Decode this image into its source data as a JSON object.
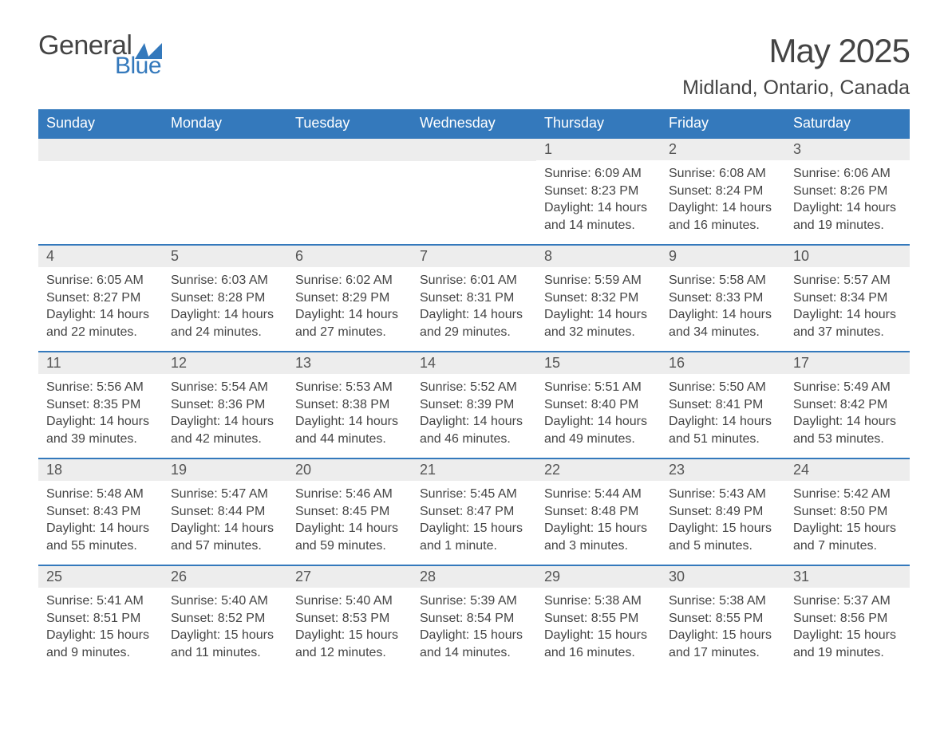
{
  "logo": {
    "text1": "General",
    "text2": "Blue",
    "shape_color": "#3479bc"
  },
  "title": "May 2025",
  "location": "Midland, Ontario, Canada",
  "colors": {
    "header_bg": "#3479bc",
    "header_text": "#ffffff",
    "daynum_bg": "#ededed",
    "text": "#444444",
    "border": "#3479bc",
    "background": "#ffffff"
  },
  "fonts": {
    "title_size": 42,
    "location_size": 25,
    "weekday_size": 18,
    "daynum_size": 18,
    "detail_size": 16
  },
  "weekdays": [
    "Sunday",
    "Monday",
    "Tuesday",
    "Wednesday",
    "Thursday",
    "Friday",
    "Saturday"
  ],
  "weeks": [
    [
      {
        "day": null
      },
      {
        "day": null
      },
      {
        "day": null
      },
      {
        "day": null
      },
      {
        "day": "1",
        "sunrise": "Sunrise: 6:09 AM",
        "sunset": "Sunset: 8:23 PM",
        "daylight1": "Daylight: 14 hours",
        "daylight2": "and 14 minutes."
      },
      {
        "day": "2",
        "sunrise": "Sunrise: 6:08 AM",
        "sunset": "Sunset: 8:24 PM",
        "daylight1": "Daylight: 14 hours",
        "daylight2": "and 16 minutes."
      },
      {
        "day": "3",
        "sunrise": "Sunrise: 6:06 AM",
        "sunset": "Sunset: 8:26 PM",
        "daylight1": "Daylight: 14 hours",
        "daylight2": "and 19 minutes."
      }
    ],
    [
      {
        "day": "4",
        "sunrise": "Sunrise: 6:05 AM",
        "sunset": "Sunset: 8:27 PM",
        "daylight1": "Daylight: 14 hours",
        "daylight2": "and 22 minutes."
      },
      {
        "day": "5",
        "sunrise": "Sunrise: 6:03 AM",
        "sunset": "Sunset: 8:28 PM",
        "daylight1": "Daylight: 14 hours",
        "daylight2": "and 24 minutes."
      },
      {
        "day": "6",
        "sunrise": "Sunrise: 6:02 AM",
        "sunset": "Sunset: 8:29 PM",
        "daylight1": "Daylight: 14 hours",
        "daylight2": "and 27 minutes."
      },
      {
        "day": "7",
        "sunrise": "Sunrise: 6:01 AM",
        "sunset": "Sunset: 8:31 PM",
        "daylight1": "Daylight: 14 hours",
        "daylight2": "and 29 minutes."
      },
      {
        "day": "8",
        "sunrise": "Sunrise: 5:59 AM",
        "sunset": "Sunset: 8:32 PM",
        "daylight1": "Daylight: 14 hours",
        "daylight2": "and 32 minutes."
      },
      {
        "day": "9",
        "sunrise": "Sunrise: 5:58 AM",
        "sunset": "Sunset: 8:33 PM",
        "daylight1": "Daylight: 14 hours",
        "daylight2": "and 34 minutes."
      },
      {
        "day": "10",
        "sunrise": "Sunrise: 5:57 AM",
        "sunset": "Sunset: 8:34 PM",
        "daylight1": "Daylight: 14 hours",
        "daylight2": "and 37 minutes."
      }
    ],
    [
      {
        "day": "11",
        "sunrise": "Sunrise: 5:56 AM",
        "sunset": "Sunset: 8:35 PM",
        "daylight1": "Daylight: 14 hours",
        "daylight2": "and 39 minutes."
      },
      {
        "day": "12",
        "sunrise": "Sunrise: 5:54 AM",
        "sunset": "Sunset: 8:36 PM",
        "daylight1": "Daylight: 14 hours",
        "daylight2": "and 42 minutes."
      },
      {
        "day": "13",
        "sunrise": "Sunrise: 5:53 AM",
        "sunset": "Sunset: 8:38 PM",
        "daylight1": "Daylight: 14 hours",
        "daylight2": "and 44 minutes."
      },
      {
        "day": "14",
        "sunrise": "Sunrise: 5:52 AM",
        "sunset": "Sunset: 8:39 PM",
        "daylight1": "Daylight: 14 hours",
        "daylight2": "and 46 minutes."
      },
      {
        "day": "15",
        "sunrise": "Sunrise: 5:51 AM",
        "sunset": "Sunset: 8:40 PM",
        "daylight1": "Daylight: 14 hours",
        "daylight2": "and 49 minutes."
      },
      {
        "day": "16",
        "sunrise": "Sunrise: 5:50 AM",
        "sunset": "Sunset: 8:41 PM",
        "daylight1": "Daylight: 14 hours",
        "daylight2": "and 51 minutes."
      },
      {
        "day": "17",
        "sunrise": "Sunrise: 5:49 AM",
        "sunset": "Sunset: 8:42 PM",
        "daylight1": "Daylight: 14 hours",
        "daylight2": "and 53 minutes."
      }
    ],
    [
      {
        "day": "18",
        "sunrise": "Sunrise: 5:48 AM",
        "sunset": "Sunset: 8:43 PM",
        "daylight1": "Daylight: 14 hours",
        "daylight2": "and 55 minutes."
      },
      {
        "day": "19",
        "sunrise": "Sunrise: 5:47 AM",
        "sunset": "Sunset: 8:44 PM",
        "daylight1": "Daylight: 14 hours",
        "daylight2": "and 57 minutes."
      },
      {
        "day": "20",
        "sunrise": "Sunrise: 5:46 AM",
        "sunset": "Sunset: 8:45 PM",
        "daylight1": "Daylight: 14 hours",
        "daylight2": "and 59 minutes."
      },
      {
        "day": "21",
        "sunrise": "Sunrise: 5:45 AM",
        "sunset": "Sunset: 8:47 PM",
        "daylight1": "Daylight: 15 hours",
        "daylight2": "and 1 minute."
      },
      {
        "day": "22",
        "sunrise": "Sunrise: 5:44 AM",
        "sunset": "Sunset: 8:48 PM",
        "daylight1": "Daylight: 15 hours",
        "daylight2": "and 3 minutes."
      },
      {
        "day": "23",
        "sunrise": "Sunrise: 5:43 AM",
        "sunset": "Sunset: 8:49 PM",
        "daylight1": "Daylight: 15 hours",
        "daylight2": "and 5 minutes."
      },
      {
        "day": "24",
        "sunrise": "Sunrise: 5:42 AM",
        "sunset": "Sunset: 8:50 PM",
        "daylight1": "Daylight: 15 hours",
        "daylight2": "and 7 minutes."
      }
    ],
    [
      {
        "day": "25",
        "sunrise": "Sunrise: 5:41 AM",
        "sunset": "Sunset: 8:51 PM",
        "daylight1": "Daylight: 15 hours",
        "daylight2": "and 9 minutes."
      },
      {
        "day": "26",
        "sunrise": "Sunrise: 5:40 AM",
        "sunset": "Sunset: 8:52 PM",
        "daylight1": "Daylight: 15 hours",
        "daylight2": "and 11 minutes."
      },
      {
        "day": "27",
        "sunrise": "Sunrise: 5:40 AM",
        "sunset": "Sunset: 8:53 PM",
        "daylight1": "Daylight: 15 hours",
        "daylight2": "and 12 minutes."
      },
      {
        "day": "28",
        "sunrise": "Sunrise: 5:39 AM",
        "sunset": "Sunset: 8:54 PM",
        "daylight1": "Daylight: 15 hours",
        "daylight2": "and 14 minutes."
      },
      {
        "day": "29",
        "sunrise": "Sunrise: 5:38 AM",
        "sunset": "Sunset: 8:55 PM",
        "daylight1": "Daylight: 15 hours",
        "daylight2": "and 16 minutes."
      },
      {
        "day": "30",
        "sunrise": "Sunrise: 5:38 AM",
        "sunset": "Sunset: 8:55 PM",
        "daylight1": "Daylight: 15 hours",
        "daylight2": "and 17 minutes."
      },
      {
        "day": "31",
        "sunrise": "Sunrise: 5:37 AM",
        "sunset": "Sunset: 8:56 PM",
        "daylight1": "Daylight: 15 hours",
        "daylight2": "and 19 minutes."
      }
    ]
  ]
}
